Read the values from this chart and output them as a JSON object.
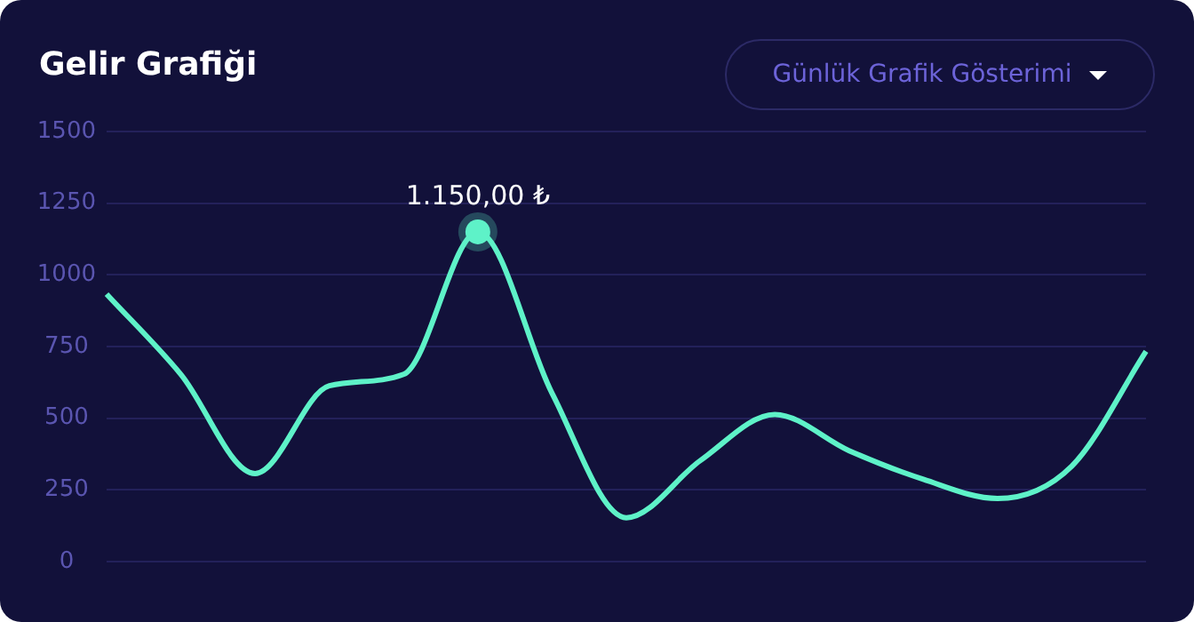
{
  "chart_data": {
    "type": "line",
    "title": "Gelir Grafiği",
    "categories": [
      null,
      null,
      null,
      null,
      null,
      null,
      null,
      null,
      null,
      null,
      null,
      null,
      null,
      null,
      null
    ],
    "series": [
      {
        "color": "#5ef2c8",
        "values": [
          933,
          653,
          307,
          613,
          653,
          1150,
          587,
          153,
          353,
          513,
          387,
          287,
          220,
          333,
          733
        ]
      }
    ],
    "ylim": [
      0,
      1500
    ],
    "yticks": [
      0,
      250,
      500,
      750,
      1000,
      1250,
      1500
    ],
    "grid": "y",
    "legend": false,
    "marker": "none",
    "line_style": "solid",
    "tick_labels": "y",
    "annotations": [
      {
        "text": "1.150,00 ₺",
        "y": 1150
      },
      "Günlük Grafik Gösterimi"
    ]
  }
}
